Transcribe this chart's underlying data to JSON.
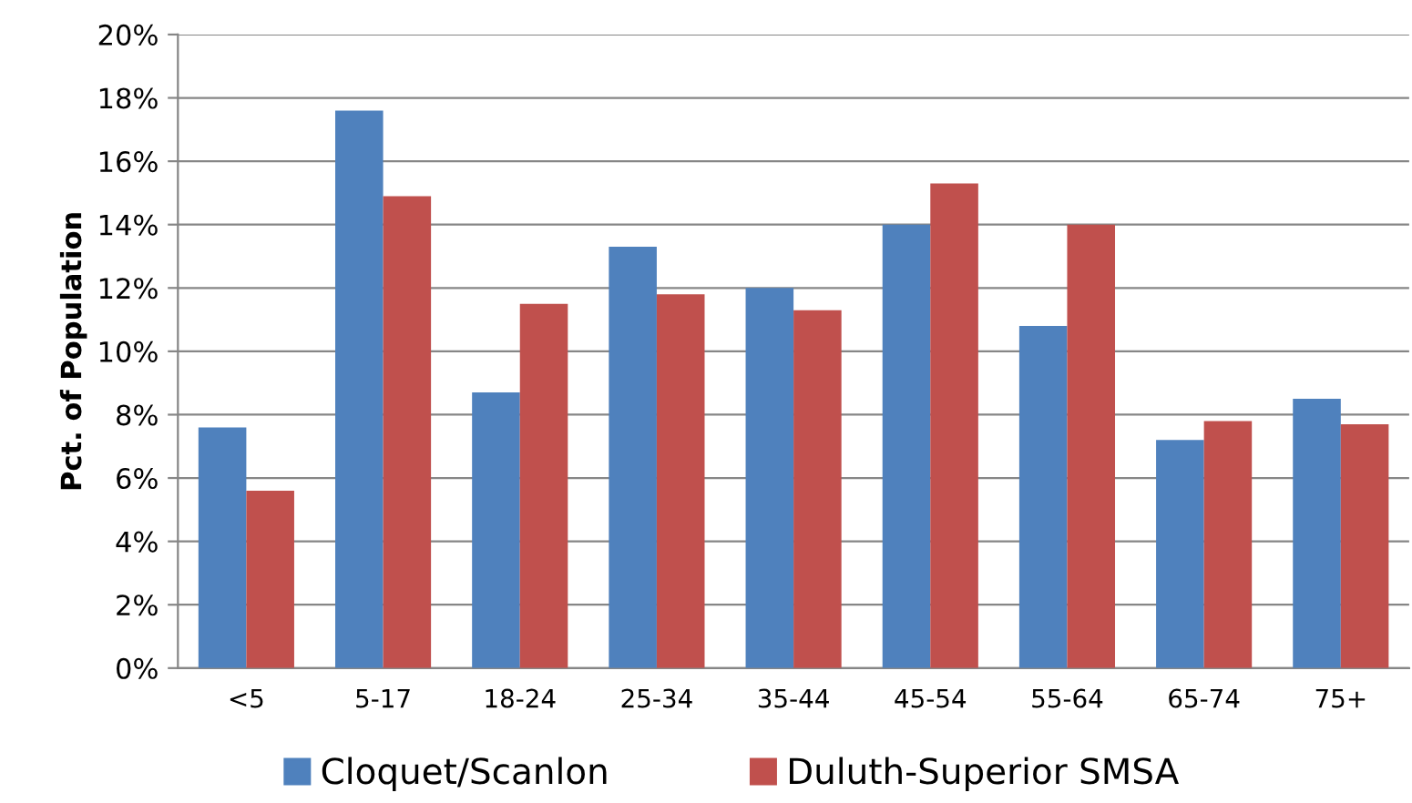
{
  "chart_data": {
    "type": "bar",
    "ylabel": "Pct. of Population",
    "categories": [
      "<5",
      "5-17",
      "18-24",
      "25-34",
      "35-44",
      "45-54",
      "55-64",
      "65-74",
      "75+"
    ],
    "series": [
      {
        "name": "Cloquet/Scanlon",
        "color": "#4f81bd",
        "values": [
          7.6,
          17.6,
          8.7,
          13.3,
          12.0,
          14.0,
          10.8,
          7.2,
          8.5
        ]
      },
      {
        "name": "Duluth-Superior SMSA",
        "color": "#c0504d",
        "values": [
          5.6,
          14.9,
          11.5,
          11.8,
          11.3,
          15.3,
          14.0,
          7.8,
          7.7
        ]
      }
    ],
    "ylim": [
      0,
      20
    ],
    "yticks": [
      {
        "value": 0,
        "label": "0%"
      },
      {
        "value": 2,
        "label": "2%"
      },
      {
        "value": 4,
        "label": "4%"
      },
      {
        "value": 6,
        "label": "6%"
      },
      {
        "value": 8,
        "label": "8%"
      },
      {
        "value": 10,
        "label": "10%"
      },
      {
        "value": 12,
        "label": "12%"
      },
      {
        "value": 14,
        "label": "14%"
      },
      {
        "value": 16,
        "label": "16%"
      },
      {
        "value": 18,
        "label": "18%"
      },
      {
        "value": 20,
        "label": "20%"
      }
    ],
    "grid": "y",
    "legend": "bottom"
  }
}
